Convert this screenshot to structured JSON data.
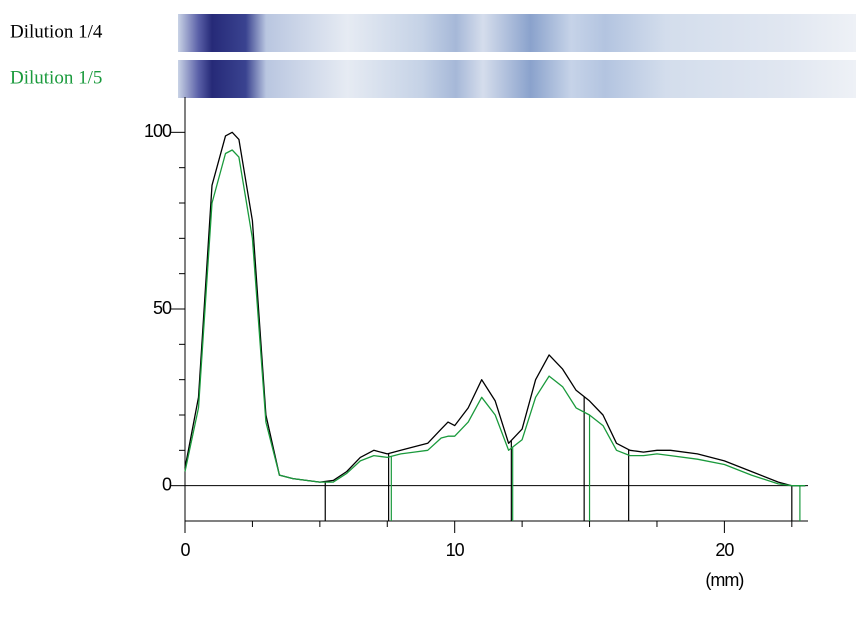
{
  "chart_data": {
    "type": "line",
    "lanes": [
      {
        "label": "Dilution 1/4",
        "color": "#000000"
      },
      {
        "label": "Dilution 1/5",
        "color": "#1a9a3c"
      }
    ],
    "x": [
      0,
      0.5,
      1,
      1.5,
      1.75,
      2,
      2.5,
      3,
      3.5,
      4,
      5,
      5.5,
      6,
      6.5,
      7,
      7.5,
      8,
      8.5,
      9,
      9.5,
      9.75,
      10,
      10.5,
      11,
      11.5,
      12,
      12.5,
      13,
      13.5,
      14,
      14.5,
      15,
      15.5,
      16,
      16.5,
      17,
      17.5,
      18,
      19,
      20,
      21,
      22,
      22.5,
      23
    ],
    "series": [
      {
        "color": "#000000",
        "values": [
          5,
          25,
          85,
          99,
          100,
          98,
          75,
          20,
          3,
          2,
          1,
          1.5,
          4,
          8,
          10,
          9,
          10,
          11,
          12,
          16,
          18,
          17,
          22,
          30,
          24,
          12,
          16,
          30,
          37,
          33,
          27,
          24,
          20,
          12,
          10,
          9.5,
          10,
          10,
          9,
          7,
          4,
          1,
          0,
          0
        ],
        "boundaries": [
          5.2,
          7.55,
          12.1,
          14.8,
          16.45,
          22.5
        ]
      },
      {
        "color": "#1a9a3c",
        "values": [
          4,
          22,
          80,
          94,
          95,
          93,
          70,
          18,
          3,
          2,
          1,
          1,
          3.5,
          7,
          8.5,
          8,
          9,
          9.5,
          10,
          13.5,
          14,
          14,
          18,
          25,
          20,
          10,
          13,
          25,
          31,
          28,
          22,
          20,
          17,
          10,
          8.5,
          8.5,
          9,
          8.5,
          7.5,
          6,
          3,
          0.5,
          0,
          0
        ],
        "boundaries": [
          7.65,
          12.15,
          15.0,
          22.8
        ]
      }
    ],
    "xlim": [
      0,
      23.1
    ],
    "xticks": [
      0,
      10,
      20
    ],
    "xminorticks": [
      2.5,
      5,
      7.5,
      12.5,
      15,
      17.5,
      22.5
    ],
    "ylim": [
      -10,
      110
    ],
    "yticks": [
      0,
      50,
      100
    ],
    "yminorticks": [
      10,
      20,
      30,
      40,
      60,
      70,
      80,
      90
    ],
    "xlabel": "(mm)"
  }
}
